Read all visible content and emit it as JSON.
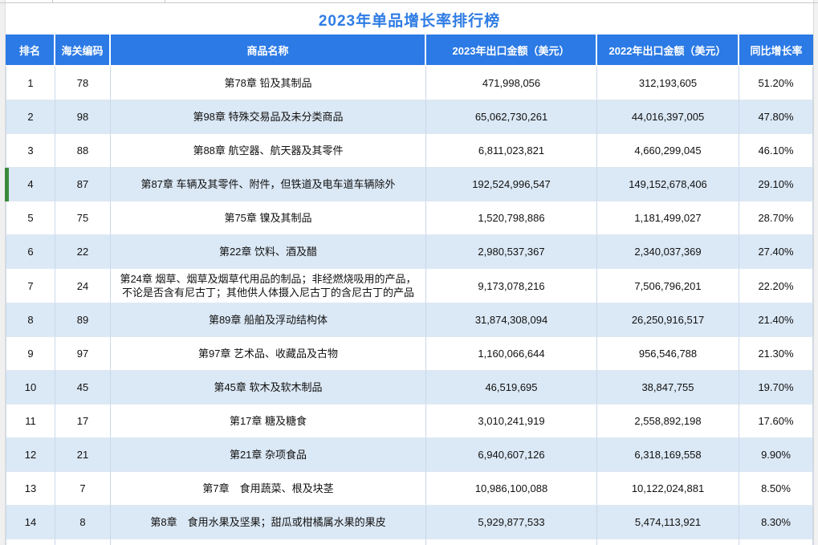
{
  "title": "2023年单品增长率排行榜",
  "table": {
    "headers": [
      "排名",
      "海关编码",
      "商品名称",
      "2023年出口金额（美元）",
      "2022年出口金额（美元）",
      "同比增长率"
    ],
    "rows": [
      {
        "rank": "1",
        "code": "78",
        "name": "第78章 铅及其制品",
        "amount_2023": "471,998,056",
        "amount_2022": "312,193,605",
        "growth": "51.20%"
      },
      {
        "rank": "2",
        "code": "98",
        "name": "第98章 特殊交易品及未分类商品",
        "amount_2023": "65,062,730,261",
        "amount_2022": "44,016,397,005",
        "growth": "47.80%"
      },
      {
        "rank": "3",
        "code": "88",
        "name": "第88章 航空器、航天器及其零件",
        "amount_2023": "6,811,023,821",
        "amount_2022": "4,660,299,045",
        "growth": "46.10%"
      },
      {
        "rank": "4",
        "code": "87",
        "name": "第87章 车辆及其零件、附件，但铁道及电车道车辆除外",
        "amount_2023": "192,524,996,547",
        "amount_2022": "149,152,678,406",
        "growth": "29.10%"
      },
      {
        "rank": "5",
        "code": "75",
        "name": "第75章 镍及其制品",
        "amount_2023": "1,520,798,886",
        "amount_2022": "1,181,499,027",
        "growth": "28.70%"
      },
      {
        "rank": "6",
        "code": "22",
        "name": "第22章 饮料、酒及醋",
        "amount_2023": "2,980,537,367",
        "amount_2022": "2,340,037,369",
        "growth": "27.40%"
      },
      {
        "rank": "7",
        "code": "24",
        "name": "第24章 烟草、烟草及烟草代用品的制品；非经燃烧吸用的产品，不论是否含有尼古丁；其他供人体摄入尼古丁的含尼古丁的产品",
        "amount_2023": "9,173,078,216",
        "amount_2022": "7,506,796,201",
        "growth": "22.20%"
      },
      {
        "rank": "8",
        "code": "89",
        "name": "第89章 船舶及浮动结构体",
        "amount_2023": "31,874,308,094",
        "amount_2022": "26,250,916,517",
        "growth": "21.40%"
      },
      {
        "rank": "9",
        "code": "97",
        "name": "第97章 艺术品、收藏品及古物",
        "amount_2023": "1,160,066,644",
        "amount_2022": "956,546,788",
        "growth": "21.30%"
      },
      {
        "rank": "10",
        "code": "45",
        "name": "第45章 软木及软木制品",
        "amount_2023": "46,519,695",
        "amount_2022": "38,847,755",
        "growth": "19.70%"
      },
      {
        "rank": "11",
        "code": "17",
        "name": "第17章 糖及糖食",
        "amount_2023": "3,010,241,919",
        "amount_2022": "2,558,892,198",
        "growth": "17.60%"
      },
      {
        "rank": "12",
        "code": "21",
        "name": "第21章 杂项食品",
        "amount_2023": "6,940,607,126",
        "amount_2022": "6,318,169,558",
        "growth": "9.90%"
      },
      {
        "rank": "13",
        "code": "7",
        "name": "第7章　食用蔬菜、根及块茎",
        "amount_2023": "10,986,100,088",
        "amount_2022": "10,122,024,881",
        "growth": "8.50%"
      },
      {
        "rank": "14",
        "code": "8",
        "name": "第8章　食用水果及坚果；甜瓜或柑橘属水果的果皮",
        "amount_2023": "5,929,877,533",
        "amount_2022": "5,474,113,921",
        "growth": "8.30%"
      }
    ],
    "selected_row_rank": "4"
  },
  "colors": {
    "header_bg": "#2B7AE5",
    "header_text": "#FFFFFF",
    "title_text": "#2E7CE4",
    "stripe_bg": "#DBE8F5",
    "selection_marker": "#3B8A3E",
    "body_text": "#111111"
  }
}
